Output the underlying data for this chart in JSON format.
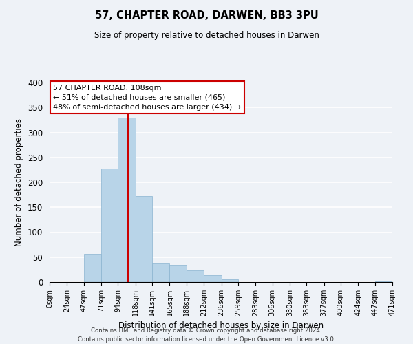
{
  "title": "57, CHAPTER ROAD, DARWEN, BB3 3PU",
  "subtitle": "Size of property relative to detached houses in Darwen",
  "xlabel": "Distribution of detached houses by size in Darwen",
  "ylabel": "Number of detached properties",
  "bar_color": "#b8d4e8",
  "bar_edge_color": "#8ab4d0",
  "annotation_line_color": "#cc0000",
  "annotation_property_size": 108,
  "bin_edges": [
    0,
    24,
    47,
    71,
    94,
    118,
    141,
    165,
    188,
    212,
    236,
    259,
    283,
    306,
    330,
    353,
    377,
    400,
    424,
    447,
    471
  ],
  "bin_labels": [
    "0sqm",
    "24sqm",
    "47sqm",
    "71sqm",
    "94sqm",
    "118sqm",
    "141sqm",
    "165sqm",
    "188sqm",
    "212sqm",
    "236sqm",
    "259sqm",
    "283sqm",
    "306sqm",
    "330sqm",
    "353sqm",
    "377sqm",
    "400sqm",
    "424sqm",
    "447sqm",
    "471sqm"
  ],
  "counts": [
    0,
    0,
    56,
    228,
    330,
    173,
    39,
    34,
    23,
    14,
    5,
    0,
    0,
    0,
    0,
    0,
    0,
    0,
    0,
    2
  ],
  "ylim": [
    0,
    400
  ],
  "yticks": [
    0,
    50,
    100,
    150,
    200,
    250,
    300,
    350,
    400
  ],
  "annotation_title": "57 CHAPTER ROAD: 108sqm",
  "annotation_line1": "← 51% of detached houses are smaller (465)",
  "annotation_line2": "48% of semi-detached houses are larger (434) →",
  "footer_line1": "Contains HM Land Registry data © Crown copyright and database right 2024.",
  "footer_line2": "Contains public sector information licensed under the Open Government Licence v3.0.",
  "background_color": "#eef2f7",
  "grid_color": "#ffffff"
}
